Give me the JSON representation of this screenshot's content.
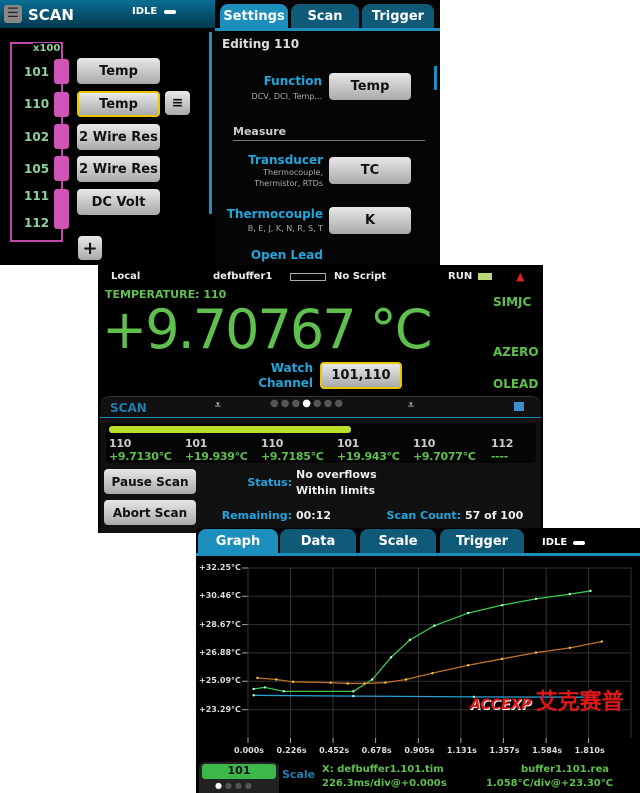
{
  "scan_panel": {
    "title": "SCAN",
    "state": "IDLE",
    "repeat": "x100",
    "channels": [
      {
        "ch": "101",
        "func": "Temp"
      },
      {
        "ch": "110",
        "func": "Temp"
      },
      {
        "ch": "102",
        "func": "2 Wire Res"
      },
      {
        "ch": "105",
        "func": "2 Wire Res"
      },
      {
        "ch": "111",
        "func": "DC Volt"
      },
      {
        "ch": "112",
        "func": ""
      }
    ],
    "tabs": [
      "Settings",
      "Scan",
      "Trigger"
    ],
    "editing": "Editing 110",
    "function_label": "Function",
    "function_sub": "DCV, DCI, Temp...",
    "function_value": "Temp",
    "measure_header": "Measure",
    "transducer_label": "Transducer",
    "transducer_sub1": "Thermocouple,",
    "transducer_sub2": "Thermistor, RTDs",
    "transducer_value": "TC",
    "thermocouple_label": "Thermocouple",
    "thermocouple_sub": "B, E, J, K, N, R, S, T",
    "thermocouple_value": "K",
    "open_lead_label": "Open Lead"
  },
  "home": {
    "mode": "Local",
    "buffer": "defbuffer1",
    "script": "No Script",
    "run": "RUN",
    "function": "TEMPERATURE: 110",
    "reading": "+9.70767 °C",
    "indicators": [
      "SIMJC",
      "AZERO",
      "OLEAD"
    ],
    "watch_label1": "Watch",
    "watch_label2": "Channel",
    "watch_value": "101,110",
    "swipe_title": "SCAN",
    "progress_fraction": 0.57,
    "readings": [
      {
        "ch": "110",
        "val": "+9.7130°C"
      },
      {
        "ch": "101",
        "val": "+19.939°C"
      },
      {
        "ch": "110",
        "val": "+9.7185°C"
      },
      {
        "ch": "101",
        "val": "+19.943°C"
      },
      {
        "ch": "110",
        "val": "+9.7077°C"
      },
      {
        "ch": "112",
        "val": "----"
      }
    ],
    "pause": "Pause Scan",
    "abort": "Abort Scan",
    "status_label": "Status:",
    "status1": "No overflows",
    "status2": "Within limits",
    "remaining_label": "Remaining:",
    "remaining": "00:12",
    "count_label": "Scan Count:",
    "count": "57 of 100"
  },
  "graph": {
    "tabs": [
      "Graph",
      "Data",
      "Scale",
      "Trigger"
    ],
    "state": "IDLE",
    "channel": "101",
    "scale": "Scale",
    "x_info": "X: defbuffer1.101.tim",
    "x_div": "226.3ms/div@+0.000s",
    "y_info": "buffer1.101.rea",
    "y_div": "1.058°C/div@+23.30°C"
  },
  "logo": {
    "text": "ACCEXP",
    "cn": "艾克赛普"
  },
  "colors": {
    "green": "#5fc04e",
    "cyan": "#1fa6dd",
    "pink": "#d054b8",
    "progress": "#b8e02a"
  },
  "chart_data": {
    "type": "line",
    "ytick_labels": [
      "+32.25°C",
      "+30.46°C",
      "+28.67°C",
      "+26.88°C",
      "+25.09°C",
      "+23.29°C"
    ],
    "xtick_labels": [
      "0.000s",
      "0.226s",
      "0.452s",
      "0.678s",
      "0.905s",
      "1.131s",
      "1.357s",
      "1.584s",
      "1.810s"
    ],
    "xlim": [
      0,
      2.035
    ],
    "ylim": [
      21.5,
      32.25
    ],
    "grid": true,
    "series": [
      {
        "color": "#3cc84a",
        "x": [
          0.03,
          0.09,
          0.19,
          0.56,
          0.66,
          0.76,
          0.86,
          0.99,
          1.17,
          1.35,
          1.53,
          1.71,
          1.82
        ],
        "y": [
          24.6,
          24.7,
          24.45,
          24.45,
          25.2,
          26.6,
          27.7,
          28.6,
          29.4,
          29.9,
          30.3,
          30.6,
          30.8
        ]
      },
      {
        "color": "#c0702a",
        "x": [
          0.05,
          0.15,
          0.24,
          0.44,
          0.53,
          0.62,
          0.73,
          0.84,
          0.98,
          1.17,
          1.35,
          1.53,
          1.71,
          1.88
        ],
        "y": [
          25.3,
          25.2,
          25.05,
          25.0,
          24.95,
          24.95,
          25.0,
          25.2,
          25.6,
          26.1,
          26.5,
          26.9,
          27.2,
          27.6
        ]
      },
      {
        "color": "#2a9ed0",
        "x": [
          0.03,
          0.56,
          1.2,
          1.84
        ],
        "y": [
          24.2,
          24.15,
          24.1,
          24.08
        ]
      }
    ]
  }
}
